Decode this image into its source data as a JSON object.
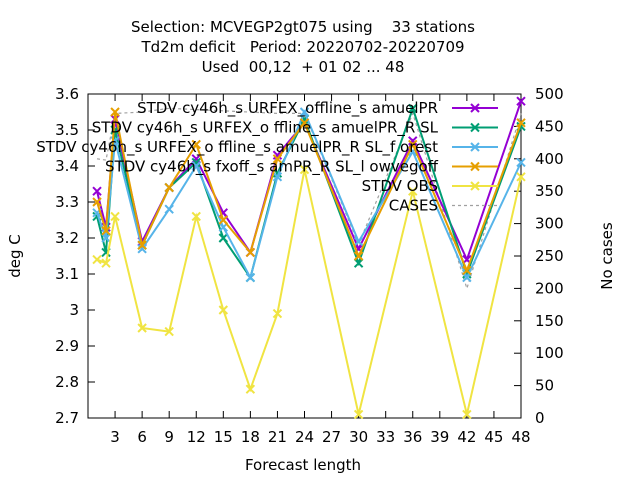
{
  "chart_data": {
    "type": "line",
    "title_lines": [
      "Selection: MCVEGP2gt075 using    33 stations",
      "Td2m deficit   Period: 20220702-20220709",
      "Used  00,12  + 01 02 ... 48"
    ],
    "xlabel": "Forecast length",
    "ylabel": "deg C",
    "y2label": "No cases",
    "x_ticks": [
      3,
      6,
      9,
      12,
      15,
      18,
      21,
      24,
      27,
      30,
      33,
      36,
      39,
      42,
      45,
      48
    ],
    "xlim": [
      0,
      48
    ],
    "ylim": [
      2.7,
      3.6
    ],
    "y_ticks": [
      2.7,
      2.8,
      2.9,
      3.0,
      3.1,
      3.2,
      3.3,
      3.4,
      3.5,
      3.6
    ],
    "y_tick_labels": [
      "2.7",
      "2.8",
      "2.9",
      "3",
      "3.1",
      "3.2",
      "3.3",
      "3.4",
      "3.5",
      "3.6"
    ],
    "y2lim": [
      0,
      500
    ],
    "y2_ticks": [
      0,
      50,
      100,
      150,
      200,
      250,
      300,
      350,
      400,
      450,
      500
    ],
    "grid": false,
    "legend_position": "top-right",
    "x": [
      1,
      2,
      3,
      6,
      9,
      12,
      15,
      18,
      21,
      24,
      30,
      36,
      42,
      48
    ],
    "series": [
      {
        "name": "STDV cy46h_s URFEX_offline_s amuelPR",
        "color": "#9400d3",
        "marker": "x",
        "values": [
          3.33,
          3.23,
          3.53,
          3.19,
          3.34,
          3.42,
          3.27,
          3.16,
          3.43,
          3.52,
          3.17,
          3.47,
          3.14,
          3.58
        ]
      },
      {
        "name": "STDV cy46h_s URFEX_o ffline_s amuelPR_R SL",
        "color": "#009e73",
        "marker": "x",
        "values": [
          3.26,
          3.16,
          3.5,
          3.18,
          3.34,
          3.41,
          3.2,
          3.09,
          3.38,
          3.53,
          3.13,
          3.56,
          3.1,
          3.51
        ]
      },
      {
        "name": "STDV cy46h_s URFEX_o ffline_s amuelPR_R SL_f orest",
        "color": "#56b4e9",
        "marker": "x",
        "values": [
          3.27,
          3.2,
          3.47,
          3.17,
          3.28,
          3.4,
          3.23,
          3.09,
          3.37,
          3.55,
          3.19,
          3.44,
          3.09,
          3.41
        ]
      },
      {
        "name": "STDV cy46h_s fxoff_s amPR_R SL_l owvegoff",
        "color": "#e69f00",
        "marker": "x",
        "values": [
          3.3,
          3.22,
          3.55,
          3.18,
          3.34,
          3.46,
          3.25,
          3.16,
          3.42,
          3.52,
          3.15,
          3.46,
          3.11,
          3.52
        ]
      },
      {
        "name": "STDV OBS",
        "color": "#f0e442",
        "marker": "x",
        "values": [
          3.14,
          3.13,
          3.26,
          2.95,
          2.94,
          3.26,
          3.0,
          2.78,
          2.99,
          3.39,
          2.71,
          3.33,
          2.71,
          3.37
        ]
      },
      {
        "name": "CASES",
        "color": "#a0a0a0",
        "marker": "none",
        "axis": "y2",
        "values": [
          400,
          398,
          470,
          472,
          478,
          476,
          474,
          472,
          470,
          470,
          268,
          470,
          200,
          470
        ]
      }
    ]
  }
}
